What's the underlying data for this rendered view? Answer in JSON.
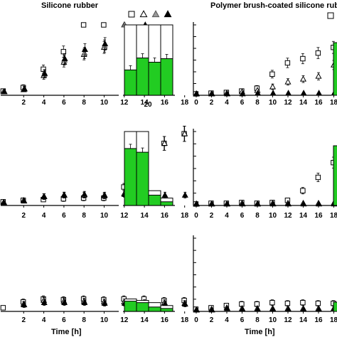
{
  "titles": {
    "left": "Silicone rubber",
    "right": "Polymer brush-coated silicone rubber"
  },
  "legend_symbols": [
    "square-open",
    "triangle-open",
    "triangle-gray",
    "triangle-filled"
  ],
  "colors": {
    "fill_green": "#22cc22",
    "gray": "#999999",
    "axis": "#000000"
  },
  "x_axis_label": "Time [h]",
  "bar_axis_label": "20",
  "chart_data": [
    {
      "type": "scatter",
      "panel": "silicone-rubber-top",
      "x_ticks": [
        2,
        4,
        6,
        8,
        10,
        12,
        14,
        16,
        18
      ],
      "xlim": [
        0,
        19
      ],
      "ylim": [
        0,
        1
      ],
      "series": [
        {
          "marker": "square-open",
          "x": [
            0,
            2,
            4,
            6,
            8,
            10
          ],
          "y": [
            0.06,
            0.11,
            0.37,
            0.62,
            1.0,
            1.0
          ]
        },
        {
          "marker": "triangle-open",
          "x": [
            0,
            2,
            4,
            6,
            8,
            10,
            12
          ],
          "y": [
            0.05,
            0.08,
            0.28,
            0.47,
            0.58,
            0.68,
            1.0
          ]
        },
        {
          "marker": "triangle-gray",
          "x": [
            0,
            2,
            4,
            6,
            8,
            10,
            12
          ],
          "y": [
            0.05,
            0.09,
            0.3,
            0.5,
            0.6,
            0.7,
            1.0
          ]
        },
        {
          "marker": "triangle-filled",
          "x": [
            0,
            2,
            4,
            6,
            8,
            10,
            14
          ],
          "y": [
            0.05,
            0.09,
            0.31,
            0.52,
            0.65,
            0.73,
            1.0
          ]
        }
      ]
    },
    {
      "type": "bar",
      "panel": "silicone-rubber-top-bars",
      "category": "20",
      "ylim": [
        0,
        1
      ],
      "total": [
        1.0,
        1.0,
        1.0,
        1.0
      ],
      "green": [
        0.36,
        0.53,
        0.47,
        0.52
      ]
    },
    {
      "type": "scatter",
      "panel": "silicone-rubber-middle",
      "x_ticks": [
        2,
        4,
        6,
        8,
        10,
        12,
        14,
        16,
        18
      ],
      "xlim": [
        0,
        19
      ],
      "ylim": [
        0,
        1
      ],
      "series": [
        {
          "marker": "square-open",
          "x": [
            0,
            2,
            4,
            6,
            8,
            10,
            12,
            14,
            16,
            18
          ],
          "y": [
            0.05,
            0.07,
            0.08,
            0.09,
            0.1,
            0.1,
            0.25,
            0.6,
            0.84,
            0.97
          ]
        },
        {
          "marker": "triangle-open",
          "x": [
            0,
            2,
            4,
            6,
            8,
            10,
            12,
            14,
            16,
            18
          ],
          "y": [
            0.04,
            0.07,
            0.12,
            0.14,
            0.14,
            0.13,
            0.16,
            0.57,
            0.84,
            0.97
          ]
        },
        {
          "marker": "triangle-filled",
          "x": [
            0,
            2,
            4,
            6,
            8,
            10,
            12,
            14,
            16,
            18
          ],
          "y": [
            0.04,
            0.06,
            0.12,
            0.14,
            0.15,
            0.14,
            0.15,
            0.14,
            0.14,
            0.14
          ]
        }
      ]
    },
    {
      "type": "bar",
      "panel": "silicone-rubber-middle-bars",
      "category": "20",
      "ylim": [
        0,
        1
      ],
      "total": [
        1.0,
        1.0,
        0.2,
        0.1
      ],
      "green": [
        0.77,
        0.72,
        0.14,
        0.05
      ]
    },
    {
      "type": "scatter",
      "panel": "silicone-rubber-bottom",
      "x_ticks": [
        2,
        4,
        6,
        8,
        10,
        12,
        14,
        16,
        18
      ],
      "xlim": [
        0,
        19
      ],
      "ylim": [
        0,
        1
      ],
      "series": [
        {
          "marker": "square-open",
          "x": [
            0,
            2,
            4,
            6,
            8,
            10,
            12,
            14,
            16,
            18
          ],
          "y": [
            0.05,
            0.13,
            0.17,
            0.16,
            0.17,
            0.16,
            0.17,
            0.17,
            0.15,
            0.15
          ]
        },
        {
          "marker": "triangle-open",
          "x": [
            2,
            4,
            6,
            8,
            10,
            12,
            14,
            16,
            18
          ],
          "y": [
            0.1,
            0.15,
            0.14,
            0.14,
            0.13,
            0.13,
            0.12,
            0.12,
            0.11
          ]
        },
        {
          "marker": "triangle-filled",
          "x": [
            2,
            4,
            6,
            8,
            10,
            12,
            14,
            16,
            18
          ],
          "y": [
            0.09,
            0.12,
            0.12,
            0.12,
            0.11,
            0.11,
            0.11,
            0.1,
            0.1
          ]
        }
      ]
    },
    {
      "type": "bar",
      "panel": "silicone-rubber-bottom-bars",
      "category": "20",
      "ylim": [
        0,
        1
      ],
      "total": [
        0.17,
        0.15,
        0.12,
        0.08
      ],
      "green": [
        0.14,
        0.12,
        0.06,
        0.04
      ]
    },
    {
      "type": "scatter",
      "panel": "brush-coated-top",
      "x_ticks": [
        0,
        2,
        4,
        6,
        8,
        10,
        12,
        14,
        16,
        18
      ],
      "xlim": [
        0,
        19
      ],
      "ylim": [
        0,
        1
      ],
      "series": [
        {
          "marker": "square-open",
          "x": [
            0,
            2,
            4,
            6,
            8,
            10,
            12,
            14,
            16,
            18
          ],
          "y": [
            0.02,
            0.03,
            0.04,
            0.06,
            0.1,
            0.3,
            0.46,
            0.52,
            0.6,
            0.68
          ]
        },
        {
          "marker": "triangle-open",
          "x": [
            0,
            2,
            4,
            6,
            8,
            10,
            12,
            14,
            16,
            18
          ],
          "y": [
            0.02,
            0.02,
            0.03,
            0.05,
            0.07,
            0.12,
            0.19,
            0.23,
            0.27,
            0.43
          ]
        },
        {
          "marker": "triangle-filled",
          "x": [
            0,
            2,
            4,
            6,
            8,
            10,
            12,
            14,
            16,
            18
          ],
          "y": [
            0.02,
            0.02,
            0.02,
            0.02,
            0.03,
            0.03,
            0.03,
            0.03,
            0.03,
            0.03
          ]
        }
      ]
    },
    {
      "type": "scatter",
      "panel": "brush-coated-middle",
      "x_ticks": [
        0,
        2,
        4,
        6,
        8,
        10,
        12,
        14,
        16,
        18
      ],
      "xlim": [
        0,
        19
      ],
      "ylim": [
        0,
        1
      ],
      "series": [
        {
          "marker": "square-open",
          "x": [
            0,
            2,
            4,
            6,
            8,
            10,
            12,
            14,
            16,
            18
          ],
          "y": [
            0.02,
            0.03,
            0.03,
            0.04,
            0.03,
            0.04,
            0.07,
            0.2,
            0.38,
            0.58
          ]
        },
        {
          "marker": "triangle-open",
          "x": [
            0,
            2,
            4,
            6,
            8,
            10,
            12,
            14,
            16,
            18
          ],
          "y": [
            0.02,
            0.02,
            0.02,
            0.03,
            0.02,
            0.03,
            0.03,
            0.03,
            0.03,
            0.03
          ]
        },
        {
          "marker": "triangle-filled",
          "x": [
            0,
            2,
            4,
            6,
            8,
            10,
            12,
            14,
            16,
            18
          ],
          "y": [
            0.02,
            0.02,
            0.02,
            0.02,
            0.02,
            0.02,
            0.02,
            0.02,
            0.02,
            0.02
          ]
        }
      ]
    },
    {
      "type": "scatter",
      "panel": "brush-coated-bottom",
      "x_ticks": [
        0,
        2,
        4,
        6,
        8,
        10,
        12,
        14,
        16,
        18
      ],
      "xlim": [
        0,
        19
      ],
      "ylim": [
        0,
        1
      ],
      "series": [
        {
          "marker": "square-open",
          "x": [
            0,
            2,
            4,
            6,
            8,
            10,
            12,
            14,
            16,
            18
          ],
          "y": [
            0.03,
            0.05,
            0.08,
            0.1,
            0.1,
            0.12,
            0.11,
            0.12,
            0.11,
            0.11
          ]
        },
        {
          "marker": "triangle-open",
          "x": [
            0,
            2,
            4,
            6,
            8,
            10,
            12,
            14,
            16,
            18
          ],
          "y": [
            0.02,
            0.03,
            0.05,
            0.04,
            0.04,
            0.04,
            0.04,
            0.04,
            0.04,
            0.04
          ]
        },
        {
          "marker": "triangle-filled",
          "x": [
            0,
            2,
            4,
            6,
            8,
            10,
            12,
            14,
            16,
            18
          ],
          "y": [
            0.02,
            0.02,
            0.04,
            0.03,
            0.03,
            0.03,
            0.03,
            0.03,
            0.03,
            0.03
          ]
        }
      ]
    }
  ]
}
